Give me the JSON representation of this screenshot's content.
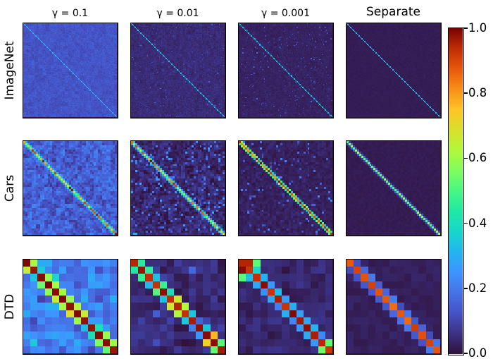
{
  "figure": {
    "background": "#ffffff",
    "panel_border_color": "#000000",
    "text_color": "#000000"
  },
  "chart_data": {
    "type": "heatmap",
    "title": "",
    "layout": {
      "rows": 3,
      "cols": 4,
      "grid": false,
      "legend": "colorbar-right"
    },
    "col_titles": [
      "γ = 0.1",
      "γ = 0.01",
      "γ = 0.001",
      "Separate"
    ],
    "row_labels": [
      "ImageNet",
      "Cars",
      "DTD"
    ],
    "value_range": [
      0,
      1
    ],
    "colormap": {
      "name": "turbo",
      "anchors": [
        "#30123b",
        "#3c3285",
        "#4552c5",
        "#4673e8",
        "#3e94fe",
        "#23b5f0",
        "#18d6cc",
        "#20e8a5",
        "#46f884",
        "#7efd5f",
        "#b1f93a",
        "#d9e02b",
        "#fdc527",
        "#fa9016",
        "#e8590c",
        "#c22d04",
        "#7a0403"
      ]
    },
    "colorbar": {
      "tick_labels": [
        "1.0",
        "0.8",
        "0.6",
        "0.4",
        "0.2",
        "0.0"
      ],
      "tick_values": [
        1.0,
        0.8,
        0.6,
        0.4,
        0.2,
        0.0
      ]
    },
    "panels": [
      {
        "dataset": "ImageNet",
        "column": "γ = 0.1",
        "n": 100,
        "seed": 11,
        "base": 0.13,
        "noise": 0.022,
        "blotch": 0.012,
        "blotch_size": 4,
        "speckle_prob": 0,
        "speckle_max": 0,
        "diag_min": 0.27,
        "diag_max": 0.32,
        "description": "uniform medium-blue matrix with light-blue main diagonal"
      },
      {
        "dataset": "ImageNet",
        "column": "γ = 0.01",
        "n": 100,
        "seed": 12,
        "base": 0.05,
        "noise": 0.018,
        "blotch": 0.008,
        "blotch_size": 4,
        "speckle_prob": 0.02,
        "speckle_max": 0.12,
        "diag_min": 0.3,
        "diag_max": 0.36,
        "description": "dark indigo matrix, finely speckled, light-blue diagonal"
      },
      {
        "dataset": "ImageNet",
        "column": "γ = 0.001",
        "n": 100,
        "seed": 13,
        "base": 0.033,
        "noise": 0.012,
        "blotch": 0.005,
        "blotch_size": 4,
        "speckle_prob": 0.03,
        "speckle_max": 0.14,
        "diag_min": 0.3,
        "diag_max": 0.38,
        "description": "near-black purple matrix with crisp light-blue diagonal"
      },
      {
        "dataset": "ImageNet",
        "column": "Separate",
        "n": 100,
        "seed": 14,
        "base": 0.022,
        "noise": 0.006,
        "blotch": 0,
        "blotch_size": 4,
        "speckle_prob": 0,
        "speckle_max": 0,
        "diag_min": 0.3,
        "diag_max": 0.34,
        "description": "clean dark-purple matrix with light-blue diagonal"
      },
      {
        "dataset": "Cars",
        "column": "γ = 0.1",
        "n": 45,
        "seed": 21,
        "base": 0.15,
        "noise": 0.04,
        "blotch": 0.05,
        "blotch_size": 2,
        "speckle_prob": 0,
        "speckle_max": 0,
        "diag_min": 0.5,
        "diag_max": 1.0,
        "band": 0.33,
        "band_noise": 0.08,
        "description": "noisy blue matrix, diagonal of red and yellow-green dots ringed in cyan"
      },
      {
        "dataset": "Cars",
        "column": "γ = 0.01",
        "n": 45,
        "seed": 22,
        "base": 0.045,
        "noise": 0.028,
        "blotch": 0.03,
        "blotch_size": 2,
        "speckle_prob": 0.1,
        "speckle_max": 0.22,
        "diag_min": 0.5,
        "diag_max": 1.0,
        "band": 0.3,
        "band_noise": 0.1,
        "description": "dark matrix with scattered blue speckles and red/yellow diagonal"
      },
      {
        "dataset": "Cars",
        "column": "γ = 0.001",
        "n": 45,
        "seed": 23,
        "base": 0.03,
        "noise": 0.015,
        "blotch": 0.01,
        "blotch_size": 2,
        "speckle_prob": 0.05,
        "speckle_max": 0.2,
        "diag_min": 0.8,
        "diag_max": 1.0,
        "band": 0.45,
        "band_noise": 0.12,
        "description": "dark matrix, thick diagonal with red cores and cyan-green fringe"
      },
      {
        "dataset": "Cars",
        "column": "Separate",
        "n": 45,
        "seed": 24,
        "base": 0.02,
        "noise": 0.007,
        "blotch": 0,
        "blotch_size": 2,
        "speckle_prob": 0,
        "speckle_max": 0,
        "diag_min": 0.48,
        "diag_max": 0.62,
        "band": 0.12,
        "band_noise": 0.04,
        "description": "clean dark matrix with thin yellow-green diagonal"
      },
      {
        "dataset": "DTD",
        "column": "γ = 0.1",
        "n": 13,
        "seed": 31,
        "base": 0.2,
        "noise": 0.07,
        "blotch": 0.04,
        "blotch_size": 2,
        "speckle_prob": 0.06,
        "speckle_max": 0.2,
        "diag_min": 0.97,
        "diag_max": 1.0,
        "band_values": [
          0.65,
          0.35,
          0.55,
          0.62,
          0.65,
          0.6,
          0.68,
          0.62,
          0.3,
          0.45,
          0.6,
          0.55
        ],
        "band_noise": 0.05,
        "description": "light-blue 13x13 matrix, dark-red diagonal flanked by yellow/orange"
      },
      {
        "dataset": "DTD",
        "column": "γ = 0.01",
        "n": 13,
        "seed": 32,
        "base": 0.05,
        "noise": 0.03,
        "blotch": 0.025,
        "blotch_size": 2,
        "speckle_prob": 0.08,
        "speckle_max": 0.2,
        "diag_min": 0.93,
        "diag_max": 1.0,
        "band_values": [
          0.4,
          0.45,
          0.3,
          0.5,
          0.35,
          0.62,
          0.6,
          0.3,
          0.2,
          0.3,
          0.72,
          0.55
        ],
        "band_noise": 0.05,
        "description": "dark 13x13 matrix, dark-red diagonal flanked by cyan/green/yellow cells"
      },
      {
        "dataset": "DTD",
        "column": "γ = 0.001",
        "n": 13,
        "seed": 33,
        "base": 0.04,
        "noise": 0.02,
        "blotch": 0.015,
        "blotch_size": 2,
        "speckle_prob": 0,
        "speckle_max": 0,
        "diag_min": 0.92,
        "diag_max": 1.0,
        "band_values": [
          0.95,
          0.35,
          0.28,
          0.22,
          0.3,
          0.24,
          0.3,
          0.24,
          0.28,
          0.3,
          0.26,
          0.55
        ],
        "band_noise": 0.04,
        "extras": [
          [
            0,
            2,
            0.52
          ],
          [
            2,
            0,
            0.52
          ]
        ],
        "description": "dark 13x13 matrix, red diagonal with blue fringe; red block top-left with green neighbors"
      },
      {
        "dataset": "DTD",
        "column": "Separate",
        "n": 13,
        "seed": 34,
        "base": 0.028,
        "noise": 0.012,
        "blotch": 0,
        "blotch_size": 2,
        "speckle_prob": 0,
        "speckle_max": 0,
        "diag_min": 0.85,
        "diag_max": 0.92,
        "band": 0.16,
        "band_noise": 0.05,
        "description": "dark 13x13 matrix, red diagonal with indigo-blue fringe"
      }
    ]
  }
}
